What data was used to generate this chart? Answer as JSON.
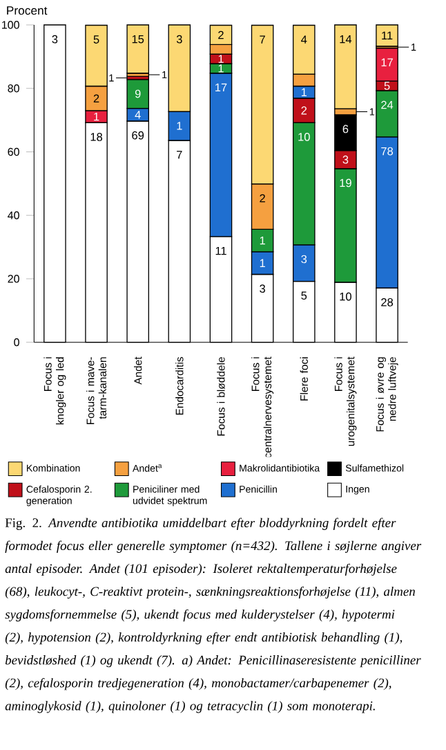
{
  "chart_data": {
    "type": "bar",
    "stacked": true,
    "ylabel": "Procent",
    "categories": [
      "Focus i knogler og led",
      "Focus i mave-tarm-kanalen",
      "Andet",
      "Endocarditis",
      "Focus i bløddele",
      "Focus i centralnervesystemet",
      "Flere foci",
      "Focus i urogenitalsystemet",
      "Focus i øvre og nedre luftveje"
    ],
    "ylim": [
      0,
      100
    ],
    "yticks": [
      0,
      20,
      40,
      60,
      80,
      100
    ],
    "legend": "bottom",
    "series": [
      {
        "name": "Ingen",
        "color": "#ffffff",
        "values": [
          100,
          69.2,
          69.7,
          63.6,
          33.3,
          21.4,
          19.2,
          18.9,
          17.1
        ]
      },
      {
        "name": "Penicillin",
        "color": "#1f6fd0",
        "values": [
          null,
          null,
          4.0,
          9.1,
          51.5,
          7.1,
          11.5,
          null,
          47.6
        ]
      },
      {
        "name": "Peniciliner med udvidet spektrum",
        "color": "#1e9a3a",
        "values": [
          null,
          null,
          9.1,
          null,
          3.0,
          7.1,
          38.5,
          35.8,
          14.6
        ]
      },
      {
        "name": "Cefalosporin 2. generation",
        "color": "#c0101a",
        "values": [
          null,
          null,
          1.0,
          null,
          3.0,
          null,
          7.7,
          5.7,
          3.0
        ]
      },
      {
        "name": "Sulfamethizol",
        "color": "#000000",
        "values": [
          null,
          null,
          null,
          null,
          null,
          null,
          null,
          11.3,
          null
        ]
      },
      {
        "color": "#1f6fd0",
        "values": [
          null,
          null,
          null,
          null,
          null,
          null,
          3.8,
          null,
          null
        ]
      },
      {
        "name": "Makrolidantibiotika",
        "color": "#e8203f",
        "values": [
          null,
          3.8,
          null,
          null,
          null,
          null,
          null,
          null,
          10.4
        ]
      },
      {
        "name": "Andet$^{a}$",
        "color": "#f5a040",
        "values": [
          null,
          7.7,
          1.0,
          null,
          3.0,
          14.3,
          3.8,
          1.9,
          0.6
        ]
      },
      {
        "name": "Kombination",
        "color": "#fcd873",
        "values": [
          null,
          19.2,
          15.2,
          27.3,
          6.1,
          50,
          15.4,
          26.4,
          6.7
        ]
      }
    ],
    "annotations": [
      {
        "text": "3",
        "x": "Focus i knogler og led",
        "y": 100
      },
      {
        "text": "18",
        "x": "Focus i mave-tarm-kanalen",
        "y": 69.2
      },
      {
        "text": "1",
        "x": "Focus i mave-tarm-kanalen",
        "y": 73.0
      },
      {
        "text": "2",
        "x": "Focus i mave-tarm-kanalen",
        "y": 80.7
      },
      {
        "text": "5",
        "x": "Focus i mave-tarm-kanalen",
        "y": 99.9
      },
      {
        "text": "69",
        "x": "Andet",
        "y": 69.7
      },
      {
        "text": "4",
        "x": "Andet",
        "y": 73.7
      },
      {
        "text": "9",
        "x": "Andet",
        "y": 82.8
      },
      {
        "text": "1",
        "x": "Andet",
        "y": 83.8
      },
      {
        "text": "1",
        "x": "Andet",
        "y": 84.8
      },
      {
        "text": "15",
        "x": "Andet",
        "y": 100
      },
      {
        "text": "7",
        "x": "Endocarditis",
        "y": 63.6
      },
      {
        "text": "1",
        "x": "Endocarditis",
        "y": 72.7
      },
      {
        "text": "3",
        "x": "Endocarditis",
        "y": 100
      },
      {
        "text": "11",
        "x": "Focus i bløddele",
        "y": 33.3
      },
      {
        "text": "17",
        "x": "Focus i bløddele",
        "y": 84.8
      },
      {
        "text": "1",
        "x": "Focus i bløddele",
        "y": 87.8
      },
      {
        "text": "1",
        "x": "Focus i bløddele",
        "y": 90.8
      },
      {
        "text": "2",
        "x": "Focus i bløddele",
        "y": 99.9
      },
      {
        "text": "3",
        "x": "Focus i centralnervesystemet",
        "y": 21.4
      },
      {
        "text": "1",
        "x": "Focus i centralnervesystemet",
        "y": 28.5
      },
      {
        "text": "1",
        "x": "Focus i centralnervesystemet",
        "y": 35.6
      },
      {
        "text": "2",
        "x": "Focus i centralnervesystemet",
        "y": 49.9
      },
      {
        "text": "7",
        "x": "Focus i centralnervesystemet",
        "y": 99.9
      },
      {
        "text": "5",
        "x": "Flere foci",
        "y": 19.2
      },
      {
        "text": "3",
        "x": "Flere foci",
        "y": 30.7
      },
      {
        "text": "10",
        "x": "Flere foci",
        "y": 69.2
      },
      {
        "text": "2",
        "x": "Flere foci",
        "y": 76.9
      },
      {
        "text": "1",
        "x": "Flere foci",
        "y": 80.7
      },
      {
        "text": "4",
        "x": "Flere foci",
        "y": 99.9
      },
      {
        "text": "10",
        "x": "Focus i urogenitalsystemet",
        "y": 18.9
      },
      {
        "text": "19",
        "x": "Focus i urogenitalsystemet",
        "y": 54.7
      },
      {
        "text": "3",
        "x": "Focus i urogenitalsystemet",
        "y": 60.4
      },
      {
        "text": "6",
        "x": "Focus i urogenitalsystemet",
        "y": 71.7
      },
      {
        "text": "1",
        "x": "Focus i urogenitalsystemet",
        "y": 73.6
      },
      {
        "text": "14",
        "x": "Focus i urogenitalsystemet",
        "y": 100
      },
      {
        "text": "28",
        "x": "Focus i øvre og nedre luftveje",
        "y": 17.1
      },
      {
        "text": "78",
        "x": "Focus i øvre og nedre luftveje",
        "y": 64.7
      },
      {
        "text": "24",
        "x": "Focus i øvre og nedre luftveje",
        "y": 79.3
      },
      {
        "text": "5",
        "x": "Focus i øvre og nedre luftveje",
        "y": 82.3
      },
      {
        "text": "17",
        "x": "Focus i øvre og nedre luftveje",
        "y": 92.7
      },
      {
        "text": "1",
        "x": "Focus i øvre og nedre luftveje",
        "y": 93.3
      },
      {
        "text": "11",
        "x": "Focus i øvre og nedre luftveje",
        "y": 100
      },
      "Fig. 2. *Anvendte antibiotika umiddelbart efter bloddyrkning fordelt efter formodet focus eller generelle symptomer (n=432). Tallene i søjlerne angiver antal episoder. Andet (101 episoder): Isoleret rektaltemperaturforhøjelse (68), leukocyt-, C-reaktivt protein-, sænkningsreaktionsforhøjelse (11), almen sygdomsfornemmelse (5), ukendt focus med kulderystelser (4), hypotermi (2), hypotension (2), kontroldyrkning efter endt antibiotisk behandling (1), bevidstløshed (1) og ukendt (7). a) Andet: Penicillinaseresistente penicilliner (2), cefalosporin tredjegeneration (4), monobactamer/carbapenemer (2), aminoglykosid (1), quinoloner (1) og tetracyclin (1) som monoterapi.*"
    ]
  }
}
